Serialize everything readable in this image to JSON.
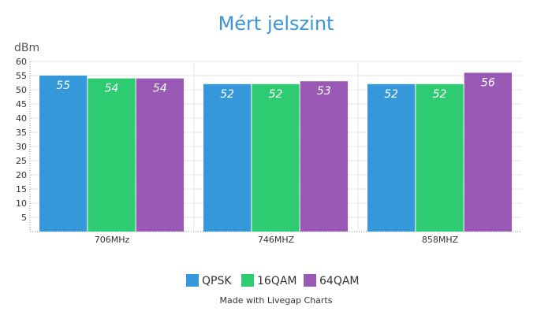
{
  "chart_data": {
    "type": "bar",
    "title": "Mért jelszint",
    "ylabel": "dBm",
    "xlabel": "",
    "ylim": [
      0,
      60
    ],
    "yticks": [
      5,
      10,
      15,
      20,
      25,
      30,
      35,
      40,
      45,
      50,
      55,
      60
    ],
    "categories": [
      "706MHz",
      "746MHZ",
      "858MHZ"
    ],
    "series": [
      {
        "name": "QPSK",
        "color": "#3498db",
        "values": [
          55,
          52,
          52
        ]
      },
      {
        "name": "16QAM",
        "color": "#2ecc71",
        "values": [
          54,
          52,
          52
        ]
      },
      {
        "name": "64QAM",
        "color": "#9b59b6",
        "values": [
          54,
          53,
          56
        ]
      }
    ],
    "legend_position": "bottom",
    "grid": true,
    "footer": "Made with Livegap Charts"
  }
}
